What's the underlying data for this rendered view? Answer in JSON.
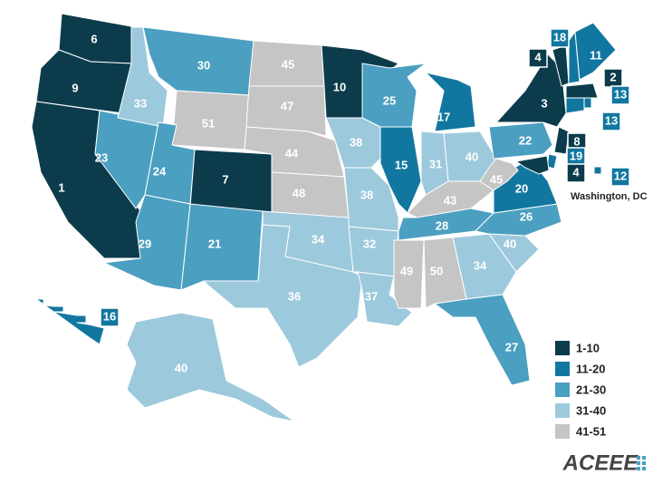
{
  "map": {
    "states": [
      6,
      9,
      1,
      23,
      33,
      30,
      51,
      24,
      7,
      29,
      21,
      45,
      47,
      44,
      48,
      34,
      36,
      10,
      38,
      38,
      32,
      37,
      25,
      15,
      17,
      31,
      40,
      43,
      28,
      49,
      50,
      34,
      27,
      40,
      26,
      20,
      45,
      22,
      3,
      4,
      18,
      11,
      2,
      13,
      13,
      8,
      19,
      4,
      12,
      16,
      40
    ],
    "dc_label": "Washington, DC"
  },
  "legend": [
    {
      "label": "1-10",
      "color": "#0c3c4c"
    },
    {
      "label": "11-20",
      "color": "#1277a0"
    },
    {
      "label": "21-30",
      "color": "#4b9fc0"
    },
    {
      "label": "31-40",
      "color": "#9dc9dc"
    },
    {
      "label": "41-51",
      "color": "#c5c5c5"
    }
  ],
  "logo": "ACEEE"
}
